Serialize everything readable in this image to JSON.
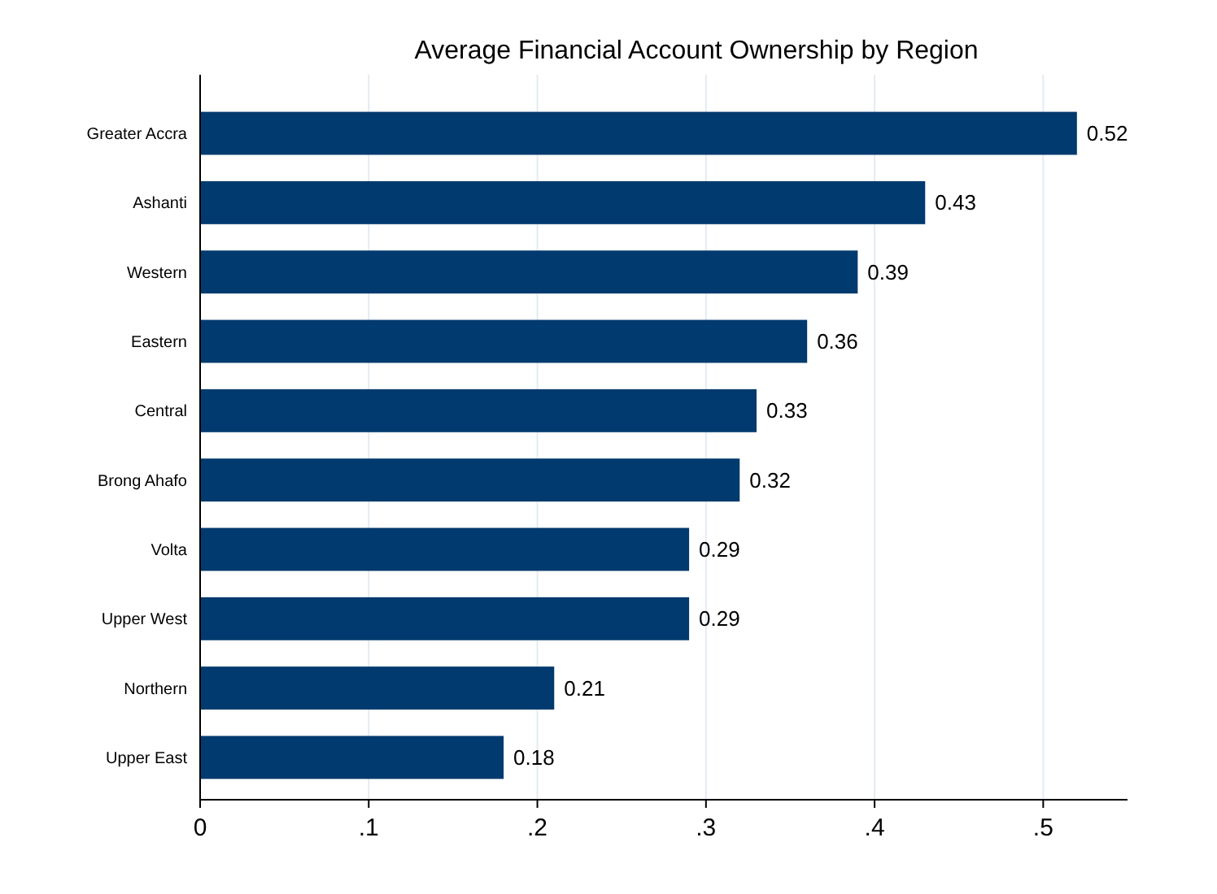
{
  "chart_data": {
    "type": "bar",
    "orientation": "horizontal",
    "title": "Average  Financial Account Ownership by Region",
    "categories": [
      "Greater Accra",
      "Ashanti",
      "Western",
      "Eastern",
      "Central",
      "Brong Ahafo",
      "Volta",
      "Upper West",
      "Northern",
      "Upper East"
    ],
    "values": [
      0.52,
      0.43,
      0.39,
      0.36,
      0.33,
      0.32,
      0.29,
      0.29,
      0.21,
      0.18
    ],
    "color": "#003a6e",
    "data_labels": true,
    "grid": "x",
    "xlim": [
      0,
      0.55
    ],
    "xticks": [
      0,
      {
        "value": 0.1,
        "label": ".1"
      },
      {
        "value": 0.2,
        "label": ".2"
      },
      {
        "value": 0.3,
        "label": ".3"
      },
      {
        "value": 0.4,
        "label": ".4"
      },
      {
        "value": 0.5,
        "label": ".5"
      }
    ]
  }
}
